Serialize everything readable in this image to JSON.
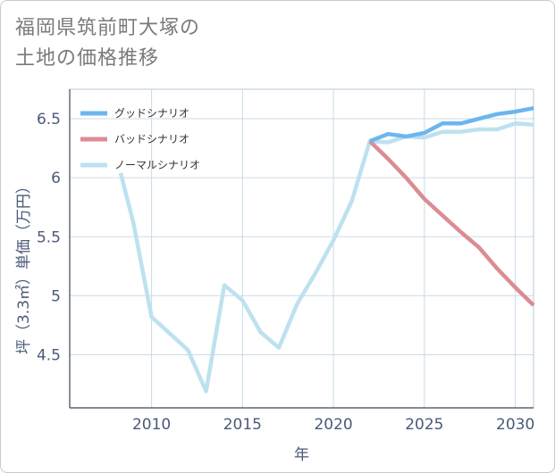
{
  "title_line1": "福岡県筑前町大塚の",
  "title_line2": "土地の価格推移",
  "chart_data": {
    "type": "line",
    "title": "福岡県筑前町大塚の土地の価格推移",
    "xlabel": "年",
    "ylabel": "坪（3.3㎡）単価（万円）",
    "xlim": [
      2005.5,
      2031
    ],
    "ylim": [
      4.05,
      6.75
    ],
    "x_ticks": [
      2010,
      2015,
      2020,
      2025,
      2030
    ],
    "y_ticks": [
      4.5,
      5,
      5.5,
      6,
      6.5
    ],
    "x_tick_labels": [
      "2010",
      "2015",
      "2020",
      "2025",
      "2030"
    ],
    "y_tick_labels": [
      "4.5",
      "5",
      "5.5",
      "6",
      "6.5"
    ],
    "grid": true,
    "legend_position": "top-left",
    "series": [
      {
        "name": "グッドシナリオ",
        "color": "#6cb6ee",
        "x": [
          2022,
          2023,
          2024,
          2025,
          2026,
          2027,
          2028,
          2029,
          2030,
          2031
        ],
        "y": [
          6.31,
          6.37,
          6.35,
          6.38,
          6.46,
          6.46,
          6.5,
          6.54,
          6.56,
          6.59
        ]
      },
      {
        "name": "バッドシナリオ",
        "color": "#dc8c94",
        "x": [
          2022,
          2023,
          2024,
          2025,
          2026,
          2027,
          2028,
          2029,
          2030,
          2031
        ],
        "y": [
          6.31,
          6.16,
          6.0,
          5.82,
          5.68,
          5.54,
          5.41,
          5.23,
          5.07,
          4.92
        ]
      },
      {
        "name": "ノーマルシナリオ",
        "color": "#bde1ef",
        "x": [
          2008.3,
          2009,
          2010,
          2011,
          2012,
          2013,
          2014,
          2015,
          2016,
          2017,
          2018,
          2019,
          2020,
          2021,
          2022,
          2023,
          2024,
          2025,
          2026,
          2027,
          2028,
          2029,
          2030,
          2031
        ],
        "y": [
          6.04,
          5.62,
          4.82,
          4.68,
          4.54,
          4.19,
          5.09,
          4.96,
          4.69,
          4.56,
          4.93,
          5.19,
          5.47,
          5.8,
          6.31,
          6.3,
          6.35,
          6.34,
          6.39,
          6.39,
          6.41,
          6.41,
          6.46,
          6.45
        ]
      }
    ]
  }
}
